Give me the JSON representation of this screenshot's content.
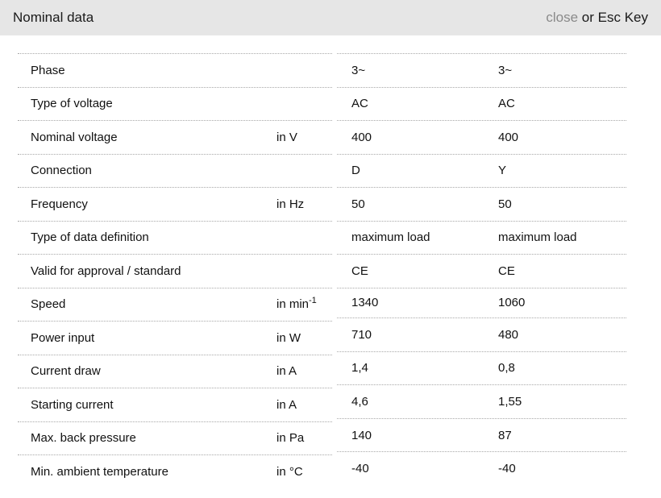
{
  "header": {
    "title": "Nominal data",
    "close_label": "close",
    "close_hint": " or Esc Key"
  },
  "colors": {
    "header_bg": "#e6e6e6",
    "close_link": "#8a8a8a",
    "divider": "#a8a8a8",
    "text": "#111111"
  },
  "table": {
    "rows": [
      {
        "label": "Phase",
        "unit": "",
        "unit_sup": "",
        "values": [
          "3~",
          "3~"
        ]
      },
      {
        "label": "Type of voltage",
        "unit": "",
        "unit_sup": "",
        "values": [
          "AC",
          "AC"
        ]
      },
      {
        "label": "Nominal voltage",
        "unit": "in V",
        "unit_sup": "",
        "values": [
          "400",
          "400"
        ]
      },
      {
        "label": "Connection",
        "unit": "",
        "unit_sup": "",
        "values": [
          "D",
          "Y"
        ]
      },
      {
        "label": "Frequency",
        "unit": "in Hz",
        "unit_sup": "",
        "values": [
          "50",
          "50"
        ]
      },
      {
        "label": "Type of data definition",
        "unit": "",
        "unit_sup": "",
        "values": [
          "maximum load",
          "maximum load"
        ]
      },
      {
        "label": "Valid for approval / standard",
        "unit": "",
        "unit_sup": "",
        "values": [
          "CE",
          "CE"
        ]
      },
      {
        "label": "Speed",
        "unit": "in min",
        "unit_sup": "-1",
        "values": [
          "1340",
          "1060"
        ]
      },
      {
        "label": "Power input",
        "unit": "in W",
        "unit_sup": "",
        "values": [
          "710",
          "480"
        ]
      },
      {
        "label": "Current draw",
        "unit": "in A",
        "unit_sup": "",
        "values": [
          "1,4",
          "0,8"
        ]
      },
      {
        "label": "Starting current",
        "unit": "in A",
        "unit_sup": "",
        "values": [
          "4,6",
          "1,55"
        ]
      },
      {
        "label": "Max. back pressure",
        "unit": "in Pa",
        "unit_sup": "",
        "values": [
          "140",
          "87"
        ]
      },
      {
        "label": "Min. ambient temperature",
        "unit": "in °C",
        "unit_sup": "",
        "values": [
          "-40",
          "-40"
        ]
      }
    ]
  }
}
